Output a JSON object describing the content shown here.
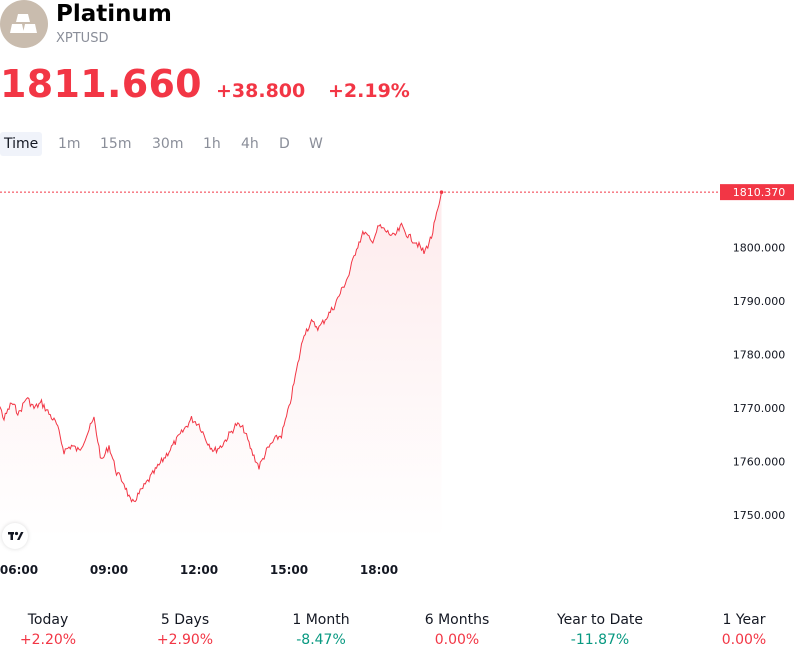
{
  "header": {
    "title": "Platinum",
    "ticker": "XPTUSD",
    "logo_icon": "metal-bars-icon"
  },
  "quote": {
    "price": "1811.660",
    "change": "+38.800",
    "change_pct": "+2.19%",
    "color": "#f23645"
  },
  "intervals": [
    "Time",
    "1m",
    "15m",
    "30m",
    "1h",
    "4h",
    "D",
    "W"
  ],
  "active_interval": "Time",
  "chart_data": {
    "type": "line",
    "series": [
      {
        "color": "#f23645",
        "points": [
          [
            "05:00",
            1776
          ],
          [
            "05:15",
            1772
          ],
          [
            "05:30",
            1768
          ],
          [
            "05:45",
            1771
          ],
          [
            "06:00",
            1769
          ],
          [
            "06:15",
            1772
          ],
          [
            "06:30",
            1770
          ],
          [
            "06:45",
            1771
          ],
          [
            "07:00",
            1769
          ],
          [
            "07:15",
            1767
          ],
          [
            "07:30",
            1762
          ],
          [
            "07:45",
            1763
          ],
          [
            "08:00",
            1762
          ],
          [
            "08:15",
            1765
          ],
          [
            "08:30",
            1768
          ],
          [
            "08:45",
            1760
          ],
          [
            "09:00",
            1763
          ],
          [
            "09:15",
            1758
          ],
          [
            "09:30",
            1756
          ],
          [
            "09:45",
            1752
          ],
          [
            "10:00",
            1754
          ],
          [
            "10:15",
            1756
          ],
          [
            "10:30",
            1758
          ],
          [
            "10:45",
            1760
          ],
          [
            "11:00",
            1762
          ],
          [
            "11:15",
            1764
          ],
          [
            "11:30",
            1766
          ],
          [
            "11:45",
            1768
          ],
          [
            "12:00",
            1767
          ],
          [
            "12:15",
            1764
          ],
          [
            "12:30",
            1762
          ],
          [
            "12:45",
            1763
          ],
          [
            "13:00",
            1765
          ],
          [
            "13:15",
            1767
          ],
          [
            "13:30",
            1766
          ],
          [
            "13:45",
            1762
          ],
          [
            "14:00",
            1759
          ],
          [
            "14:15",
            1762
          ],
          [
            "14:30",
            1764
          ],
          [
            "14:45",
            1765
          ],
          [
            "15:00",
            1770
          ],
          [
            "15:15",
            1777
          ],
          [
            "15:30",
            1784
          ],
          [
            "15:45",
            1786
          ],
          [
            "16:00",
            1785
          ],
          [
            "16:15",
            1787
          ],
          [
            "16:30",
            1789
          ],
          [
            "16:45",
            1792
          ],
          [
            "17:00",
            1795
          ],
          [
            "17:15",
            1800
          ],
          [
            "17:30",
            1803
          ],
          [
            "17:45",
            1801
          ],
          [
            "18:00",
            1804
          ],
          [
            "18:15",
            1803
          ],
          [
            "18:30",
            1802
          ],
          [
            "18:45",
            1804
          ],
          [
            "19:00",
            1802
          ],
          [
            "19:15",
            1801
          ],
          [
            "19:30",
            1799
          ],
          [
            "19:45",
            1802
          ],
          [
            "20:00",
            1808
          ],
          [
            "20:05",
            1810.37
          ]
        ]
      }
    ],
    "x_ticks": [
      "06:00",
      "09:00",
      "12:00",
      "15:00",
      "18:00"
    ],
    "y_ticks": [
      "1800.000",
      "1790.000",
      "1780.000",
      "1770.000",
      "1760.000",
      "1750.000"
    ],
    "ylim": [
      1745,
      1816
    ],
    "last_value_label": "1810.370"
  },
  "performance": [
    {
      "label": "Today",
      "value": "+2.20%",
      "dir": "pos"
    },
    {
      "label": "5 Days",
      "value": "+2.90%",
      "dir": "pos"
    },
    {
      "label": "1 Month",
      "value": "-8.47%",
      "dir": "neg"
    },
    {
      "label": "6 Months",
      "value": "0.00%",
      "dir": "pos"
    },
    {
      "label": "Year to Date",
      "value": "-11.87%",
      "dir": "neg"
    },
    {
      "label": "1 Year",
      "value": "0.00%",
      "dir": "pos"
    }
  ]
}
